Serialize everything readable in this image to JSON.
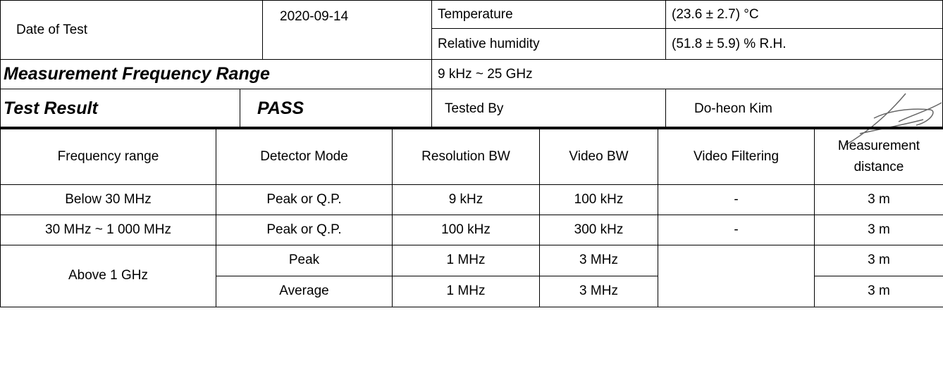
{
  "header_table": {
    "date_label": "Date of Test",
    "date": "2020-09-14",
    "temperature_label": "Temperature",
    "temperature": "(23.6 ± 2.7) °C",
    "humidity_label": "Relative humidity",
    "humidity": "(51.8 ± 5.9) % R.H.",
    "range_label": "Measurement Frequency Range",
    "range": "9 kHz ~ 25 GHz",
    "result_label": "Test Result",
    "result": "PASS",
    "tested_by_label": "Tested By",
    "tested_by": "Do-heon Kim"
  },
  "settings_table": {
    "columns": [
      "Frequency range",
      "Detector Mode",
      "Resolution BW",
      "Video BW",
      "Video Filtering",
      "Measurement distance"
    ],
    "rows": [
      [
        "Below 30 MHz",
        "Peak or Q.P.",
        "9 kHz",
        "100 kHz",
        "-",
        "3 m"
      ],
      [
        "30 MHz ~ 1 000 MHz",
        "Peak or Q.P.",
        "100 kHz",
        "300 kHz",
        "-",
        "3 m"
      ],
      [
        "Above 1 GHz",
        "Peak",
        "1 MHz",
        "3 MHz",
        "3 m"
      ],
      [
        "Average",
        "1 MHz",
        "3 MHz",
        "3 m"
      ]
    ]
  }
}
